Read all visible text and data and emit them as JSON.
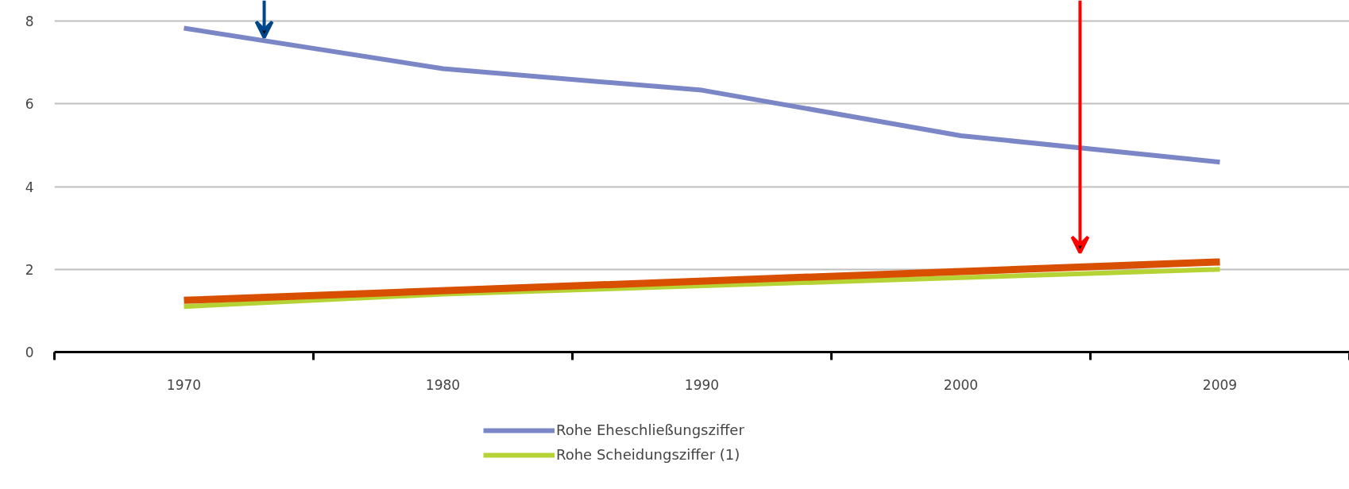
{
  "chart_data": {
    "type": "line",
    "categories": [
      "1970",
      "1980",
      "1990",
      "2000",
      "2009"
    ],
    "series": [
      {
        "name": "Rohe Eheschließungsziffer",
        "color": "#7b86c6",
        "values": [
          7.83,
          6.85,
          6.33,
          5.23,
          4.59
        ]
      },
      {
        "name": "Rohe Scheidungsziffer (1)",
        "color": "#b5d334",
        "values": [
          1.1,
          1.4,
          1.6,
          1.8,
          2.0
        ]
      },
      {
        "type": "line",
        "color": "#d94f00",
        "values": [
          1.25,
          null,
          null,
          null,
          2.18
        ]
      }
    ],
    "ylim": [
      0,
      8.5
    ],
    "yticks": [
      0,
      2,
      4,
      6,
      8
    ],
    "grid": "y",
    "legend": "bottom",
    "marker": "none"
  }
}
